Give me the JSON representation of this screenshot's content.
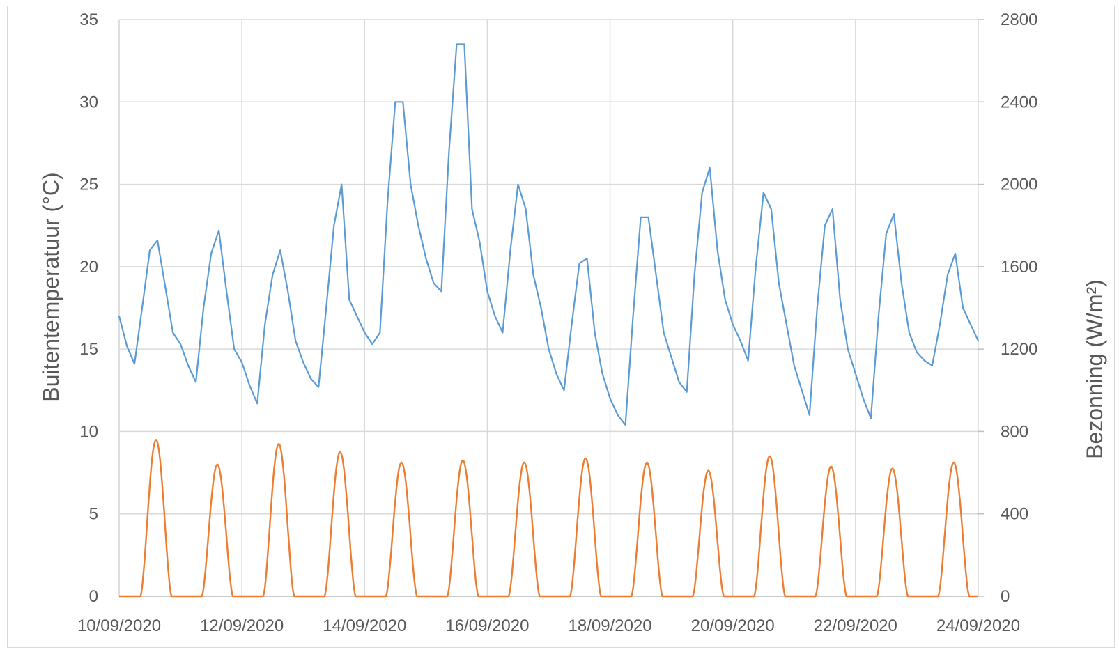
{
  "chart_data": {
    "type": "line",
    "title": "",
    "xlabel": "",
    "ylabel": "Buitentemperatuur (°C)",
    "y2label": "Bezonning (W/m²)",
    "x_range": [
      "10/09/2020",
      "24/09/2020"
    ],
    "x_ticks": [
      "10/09/2020",
      "12/09/2020",
      "14/09/2020",
      "16/09/2020",
      "18/09/2020",
      "20/09/2020",
      "22/09/2020",
      "24/09/2020"
    ],
    "ylim": [
      0,
      35
    ],
    "y_ticks": [
      0,
      5,
      10,
      15,
      20,
      25,
      30,
      35
    ],
    "y2lim": [
      0,
      2800
    ],
    "y2_ticks": [
      0,
      400,
      800,
      1200,
      1600,
      2000,
      2400,
      2800
    ],
    "grid": true,
    "legend": "none",
    "series": [
      {
        "axis": "left",
        "color": "#5b9bd5",
        "points": [
          [
            "10/09/2020 00:00",
            17.0
          ],
          [
            "10/09/2020 03:00",
            15.2
          ],
          [
            "10/09/2020 06:00",
            14.1
          ],
          [
            "10/09/2020 09:00",
            17.5
          ],
          [
            "10/09/2020 12:00",
            21.0
          ],
          [
            "10/09/2020 15:00",
            21.6
          ],
          [
            "10/09/2020 18:00",
            18.8
          ],
          [
            "10/09/2020 21:00",
            16.0
          ],
          [
            "11/09/2020 00:00",
            15.3
          ],
          [
            "11/09/2020 03:00",
            14.0
          ],
          [
            "11/09/2020 06:00",
            13.0
          ],
          [
            "11/09/2020 09:00",
            17.5
          ],
          [
            "11/09/2020 12:00",
            20.8
          ],
          [
            "11/09/2020 15:00",
            22.2
          ],
          [
            "11/09/2020 18:00",
            18.5
          ],
          [
            "11/09/2020 21:00",
            15.0
          ],
          [
            "12/09/2020 00:00",
            14.2
          ],
          [
            "12/09/2020 03:00",
            12.8
          ],
          [
            "12/09/2020 06:00",
            11.7
          ],
          [
            "12/09/2020 09:00",
            16.5
          ],
          [
            "12/09/2020 12:00",
            19.5
          ],
          [
            "12/09/2020 15:00",
            21.0
          ],
          [
            "12/09/2020 18:00",
            18.5
          ],
          [
            "12/09/2020 21:00",
            15.5
          ],
          [
            "13/09/2020 00:00",
            14.2
          ],
          [
            "13/09/2020 03:00",
            13.2
          ],
          [
            "13/09/2020 06:00",
            12.7
          ],
          [
            "13/09/2020 09:00",
            17.5
          ],
          [
            "13/09/2020 12:00",
            22.5
          ],
          [
            "13/09/2020 15:00",
            25.0
          ],
          [
            "13/09/2020 18:00",
            18.0
          ],
          [
            "13/09/2020 21:00",
            17.0
          ],
          [
            "14/09/2020 00:00",
            16.0
          ],
          [
            "14/09/2020 03:00",
            15.3
          ],
          [
            "14/09/2020 06:00",
            16.0
          ],
          [
            "14/09/2020 09:00",
            24.0
          ],
          [
            "14/09/2020 12:00",
            30.0
          ],
          [
            "14/09/2020 15:00",
            30.0
          ],
          [
            "14/09/2020 18:00",
            25.0
          ],
          [
            "14/09/2020 21:00",
            22.5
          ],
          [
            "15/09/2020 00:00",
            20.5
          ],
          [
            "15/09/2020 03:00",
            19.0
          ],
          [
            "15/09/2020 06:00",
            18.5
          ],
          [
            "15/09/2020 09:00",
            27.0
          ],
          [
            "15/09/2020 12:00",
            33.5
          ],
          [
            "15/09/2020 15:00",
            33.5
          ],
          [
            "15/09/2020 18:00",
            23.5
          ],
          [
            "15/09/2020 21:00",
            21.5
          ],
          [
            "16/09/2020 00:00",
            18.5
          ],
          [
            "16/09/2020 03:00",
            17.0
          ],
          [
            "16/09/2020 06:00",
            16.0
          ],
          [
            "16/09/2020 09:00",
            21.0
          ],
          [
            "16/09/2020 12:00",
            25.0
          ],
          [
            "16/09/2020 15:00",
            23.5
          ],
          [
            "16/09/2020 18:00",
            19.5
          ],
          [
            "16/09/2020 21:00",
            17.5
          ],
          [
            "17/09/2020 00:00",
            15.0
          ],
          [
            "17/09/2020 03:00",
            13.5
          ],
          [
            "17/09/2020 06:00",
            12.5
          ],
          [
            "17/09/2020 09:00",
            16.5
          ],
          [
            "17/09/2020 12:00",
            20.2
          ],
          [
            "17/09/2020 15:00",
            20.5
          ],
          [
            "17/09/2020 18:00",
            16.0
          ],
          [
            "17/09/2020 21:00",
            13.5
          ],
          [
            "18/09/2020 00:00",
            12.0
          ],
          [
            "18/09/2020 03:00",
            11.0
          ],
          [
            "18/09/2020 06:00",
            10.4
          ],
          [
            "18/09/2020 09:00",
            17.0
          ],
          [
            "18/09/2020 12:00",
            23.0
          ],
          [
            "18/09/2020 15:00",
            23.0
          ],
          [
            "18/09/2020 18:00",
            19.5
          ],
          [
            "18/09/2020 21:00",
            16.0
          ],
          [
            "19/09/2020 00:00",
            14.5
          ],
          [
            "19/09/2020 03:00",
            13.0
          ],
          [
            "19/09/2020 06:00",
            12.4
          ],
          [
            "19/09/2020 09:00",
            19.5
          ],
          [
            "19/09/2020 12:00",
            24.5
          ],
          [
            "19/09/2020 15:00",
            26.0
          ],
          [
            "19/09/2020 18:00",
            21.0
          ],
          [
            "19/09/2020 21:00",
            18.0
          ],
          [
            "20/09/2020 00:00",
            16.5
          ],
          [
            "20/09/2020 03:00",
            15.5
          ],
          [
            "20/09/2020 06:00",
            14.3
          ],
          [
            "20/09/2020 09:00",
            20.0
          ],
          [
            "20/09/2020 12:00",
            24.5
          ],
          [
            "20/09/2020 15:00",
            23.5
          ],
          [
            "20/09/2020 18:00",
            19.0
          ],
          [
            "20/09/2020 21:00",
            16.5
          ],
          [
            "21/09/2020 00:00",
            14.0
          ],
          [
            "21/09/2020 03:00",
            12.5
          ],
          [
            "21/09/2020 06:00",
            11.0
          ],
          [
            "21/09/2020 09:00",
            17.5
          ],
          [
            "21/09/2020 12:00",
            22.5
          ],
          [
            "21/09/2020 15:00",
            23.5
          ],
          [
            "21/09/2020 18:00",
            18.0
          ],
          [
            "21/09/2020 21:00",
            15.0
          ],
          [
            "22/09/2020 00:00",
            13.5
          ],
          [
            "22/09/2020 03:00",
            12.0
          ],
          [
            "22/09/2020 06:00",
            10.8
          ],
          [
            "22/09/2020 09:00",
            17.0
          ],
          [
            "22/09/2020 12:00",
            22.0
          ],
          [
            "22/09/2020 15:00",
            23.2
          ],
          [
            "22/09/2020 18:00",
            19.0
          ],
          [
            "22/09/2020 21:00",
            16.0
          ],
          [
            "23/09/2020 00:00",
            14.8
          ],
          [
            "23/09/2020 03:00",
            14.3
          ],
          [
            "23/09/2020 06:00",
            14.0
          ],
          [
            "23/09/2020 09:00",
            16.5
          ],
          [
            "23/09/2020 12:00",
            19.5
          ],
          [
            "23/09/2020 15:00",
            20.8
          ],
          [
            "23/09/2020 18:00",
            17.5
          ],
          [
            "23/09/2020 21:00",
            16.5
          ],
          [
            "24/09/2020 00:00",
            15.5
          ]
        ]
      },
      {
        "axis": "right",
        "color": "#ed7d31",
        "daily_peaks": [
          [
            "10/09/2020",
            760
          ],
          [
            "11/09/2020",
            640
          ],
          [
            "12/09/2020",
            740
          ],
          [
            "13/09/2020",
            700
          ],
          [
            "14/09/2020",
            650
          ],
          [
            "15/09/2020",
            660
          ],
          [
            "16/09/2020",
            650
          ],
          [
            "17/09/2020",
            670
          ],
          [
            "18/09/2020",
            650
          ],
          [
            "19/09/2020",
            610
          ],
          [
            "20/09/2020",
            680
          ],
          [
            "21/09/2020",
            630
          ],
          [
            "22/09/2020",
            620
          ],
          [
            "23/09/2020",
            650
          ]
        ],
        "sunrise": "08:20",
        "sunset": "20:30"
      }
    ]
  }
}
